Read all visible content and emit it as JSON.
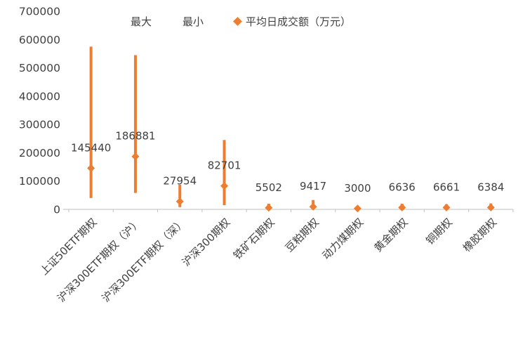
{
  "chart_data": {
    "type": "stock-hilo",
    "title": "",
    "legend": [
      "最大",
      "最小",
      "平均日成交额（万元）"
    ],
    "categories": [
      "上证50ETF期权",
      "沪深300ETF期权（沪）",
      "沪深300ETF期权（深）",
      "沪深300期权",
      "铁矿石期权",
      "豆粕期权",
      "动力煤期权",
      "黄金期权",
      "铜期权",
      "橡胶期权"
    ],
    "series": [
      {
        "name": "最大",
        "values": [
          575000,
          545000,
          87000,
          245000,
          20000,
          33000,
          9000,
          20000,
          18000,
          21000
        ]
      },
      {
        "name": "最小",
        "values": [
          40000,
          58000,
          8000,
          15000,
          1500,
          2500,
          800,
          1500,
          1500,
          1500
        ]
      },
      {
        "name": "平均日成交额（万元）",
        "values": [
          145440,
          186881,
          27954,
          82701,
          5502,
          9417,
          3000,
          6636,
          6661,
          6384
        ]
      }
    ],
    "data_labels": [
      "145440",
      "186881",
      "27954",
      "82701",
      "5502",
      "9417",
      "3000",
      "6636",
      "6661",
      "6384"
    ],
    "ylim": [
      0,
      700000
    ],
    "yticks": [
      0,
      100000,
      200000,
      300000,
      400000,
      500000,
      600000,
      700000
    ],
    "colors": {
      "series": "#ED7D31",
      "axis_text": "#404040",
      "label_text": "#404040",
      "axis_line": "#BFBFBF"
    }
  }
}
